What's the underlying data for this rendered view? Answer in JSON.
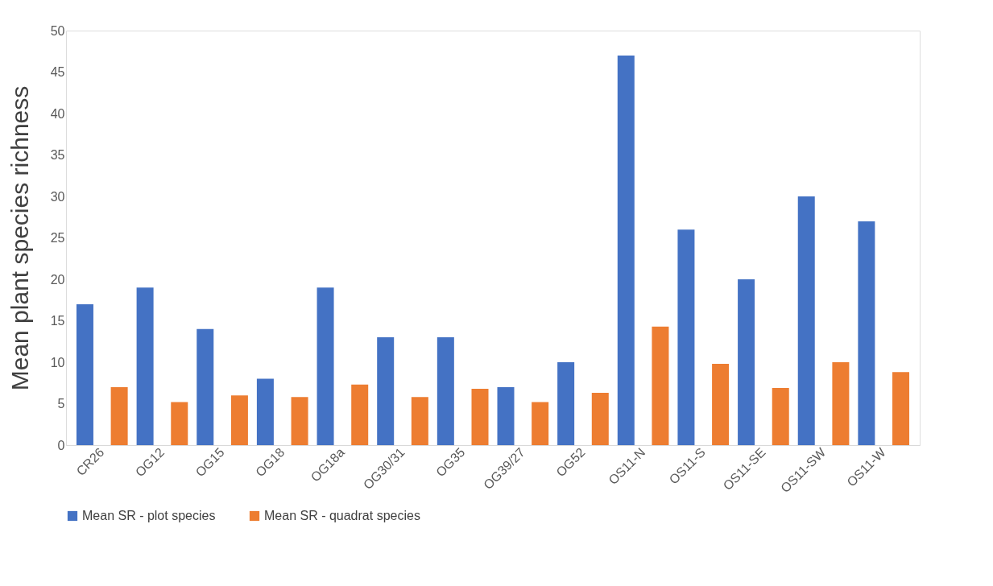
{
  "chart_data": {
    "type": "bar",
    "ylabel": "Mean plant species richness",
    "categories": [
      "CR26",
      "OG12",
      "OG15",
      "OG18",
      "OG18a",
      "OG30/31",
      "OG35",
      "OG39/27",
      "OG52",
      "OS11-N",
      "OS11-S",
      "OS11-SE",
      "OS11-SW",
      "OS11-W"
    ],
    "series": [
      {
        "name": "Mean SR - plot species",
        "color": "#4472c4",
        "values": [
          17,
          19,
          14,
          8,
          19,
          13,
          13,
          7,
          10,
          47,
          26,
          20,
          30,
          27
        ]
      },
      {
        "name": "Mean SR - quadrat species",
        "color": "#ed7d31",
        "values": [
          7.0,
          5.2,
          6.0,
          5.8,
          7.3,
          5.8,
          6.8,
          5.2,
          6.3,
          14.3,
          9.8,
          6.9,
          10.0,
          8.8
        ]
      }
    ],
    "ylim": [
      0,
      50
    ],
    "yticks": [
      0,
      5,
      10,
      15,
      20,
      25,
      30,
      35,
      40,
      45,
      50
    ],
    "grid": false,
    "legend": "bottom"
  }
}
